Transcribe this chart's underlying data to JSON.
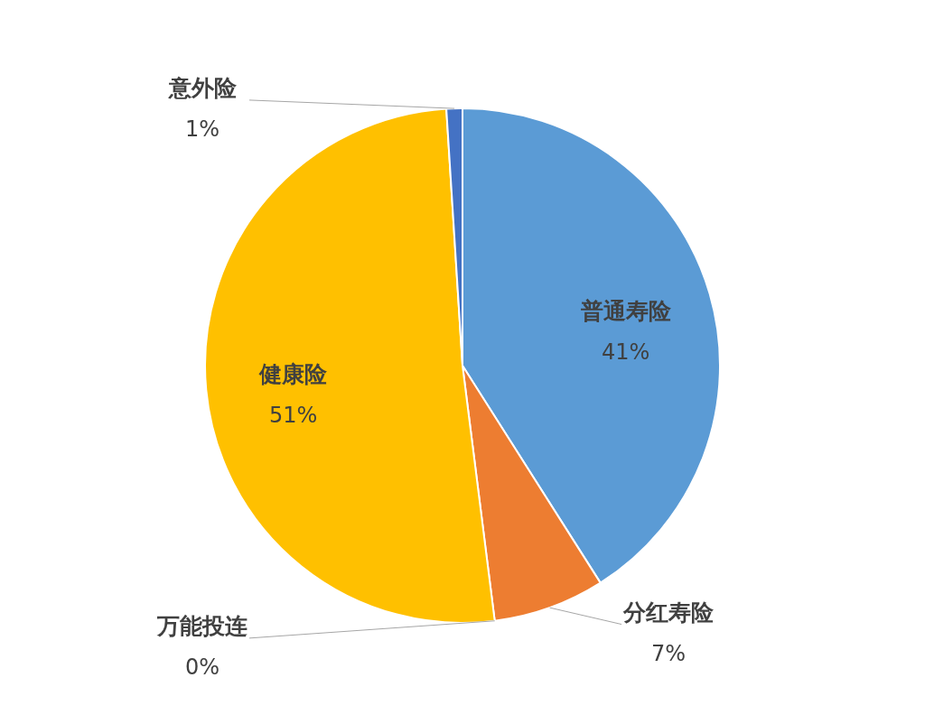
{
  "chart_data": {
    "type": "pie",
    "categories": [
      "普通寿险",
      "分红寿险",
      "万能投连",
      "健康险",
      "意外险"
    ],
    "values": [
      41,
      7,
      0,
      51,
      1
    ],
    "value_labels": [
      "41%",
      "7%",
      "0%",
      "51%",
      "1%"
    ],
    "colors": [
      "#5b9bd5",
      "#ed7d31",
      "#a5a5a5",
      "#ffc000",
      "#4472c4"
    ],
    "legend": false
  }
}
